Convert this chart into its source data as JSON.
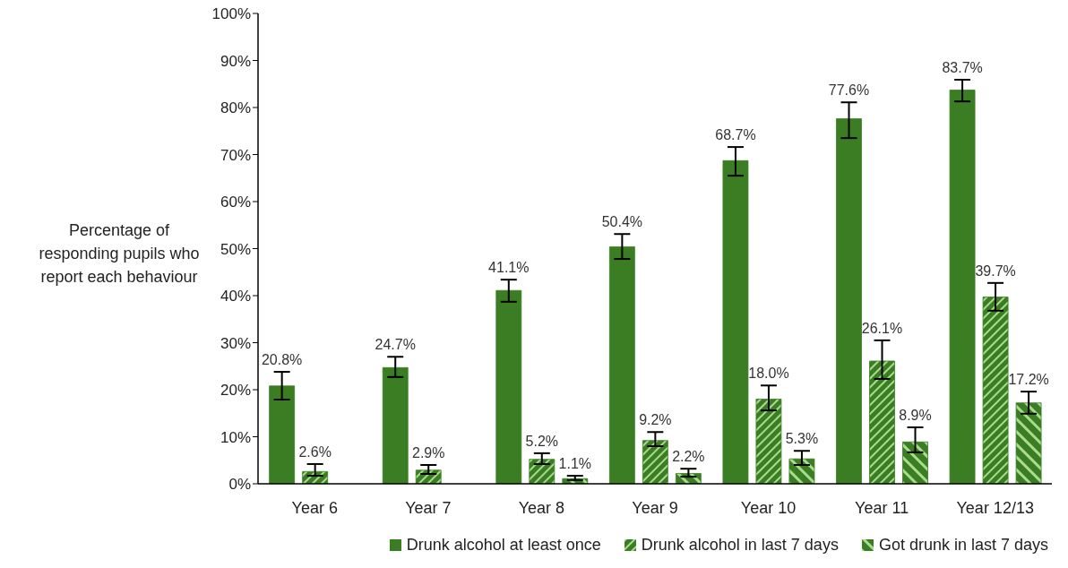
{
  "chart_data": {
    "type": "bar",
    "ylabel": "Percentage of responding pupils who report each behaviour",
    "categories": [
      "Year 6",
      "Year 7",
      "Year 8",
      "Year 9",
      "Year 10",
      "Year 11",
      "Year 12/13"
    ],
    "ylim": [
      0,
      100
    ],
    "yticks": [
      {
        "value": 0,
        "label": "0%"
      },
      {
        "value": 10,
        "label": "10%"
      },
      {
        "value": 20,
        "label": "20%"
      },
      {
        "value": 30,
        "label": "30%"
      },
      {
        "value": 40,
        "label": "40%"
      },
      {
        "value": 50,
        "label": "50%"
      },
      {
        "value": 60,
        "label": "60%"
      },
      {
        "value": 70,
        "label": "70%"
      },
      {
        "value": 80,
        "label": "80%"
      },
      {
        "value": 90,
        "label": "90%"
      },
      {
        "value": 100,
        "label": "100%"
      }
    ],
    "grid": false,
    "legend": "bottom",
    "series": [
      {
        "name": "Drunk alcohol at least once",
        "color": "#3a7d22",
        "values": [
          20.8,
          24.7,
          41.1,
          50.4,
          68.7,
          77.6,
          83.7
        ],
        "value_labels": [
          "20.8%",
          "24.7%",
          "41.1%",
          "50.4%",
          "68.7%",
          "77.6%",
          "83.7%"
        ],
        "errors": [
          [
            17.9,
            23.8
          ],
          [
            22.7,
            27.0
          ],
          [
            38.7,
            43.4
          ],
          [
            47.8,
            53.1
          ],
          [
            65.5,
            71.6
          ],
          [
            73.5,
            81.1
          ],
          [
            81.3,
            85.9
          ]
        ]
      },
      {
        "name": "Drunk alcohol in last 7 days",
        "color": "#3a7d22",
        "values": [
          2.6,
          2.9,
          5.2,
          9.2,
          18.0,
          26.1,
          39.7
        ],
        "value_labels": [
          "2.6%",
          "2.9%",
          "5.2%",
          "9.2%",
          "18.0%",
          "26.1%",
          "39.7%"
        ],
        "errors": [
          [
            1.7,
            4.2
          ],
          [
            2.1,
            4.0
          ],
          [
            4.2,
            6.5
          ],
          [
            8.0,
            11.0
          ],
          [
            15.6,
            20.9
          ],
          [
            22.3,
            30.5
          ],
          [
            36.8,
            42.7
          ]
        ]
      },
      {
        "name": "Got drunk in last 7 days",
        "color": "#3a7d22",
        "values": [
          null,
          null,
          1.1,
          2.2,
          5.3,
          8.9,
          17.2
        ],
        "value_labels": [
          null,
          null,
          "1.1%",
          "2.2%",
          "5.3%",
          "8.9%",
          "17.2%"
        ],
        "errors": [
          null,
          null,
          [
            0.8,
            1.7
          ],
          [
            1.5,
            3.2
          ],
          [
            4.0,
            7.0
          ],
          [
            6.7,
            12.0
          ],
          [
            14.9,
            19.6
          ]
        ]
      }
    ]
  }
}
